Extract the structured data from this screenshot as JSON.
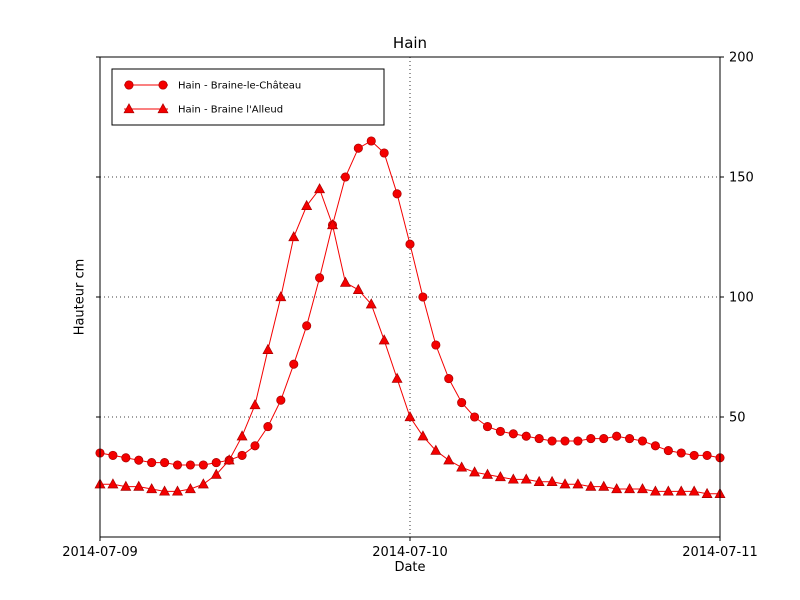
{
  "chart_data": {
    "type": "line",
    "title": "Hain",
    "xlabel": "Date",
    "ylabel": "Hauteur cm",
    "x_unit": "hours since 2014-07-09 00:00",
    "xlim": [
      0,
      48
    ],
    "ylim": [
      0,
      200
    ],
    "grid": true,
    "legend_position": "upper left",
    "line_color": "#f40000",
    "x_ticks": [
      {
        "value": 0,
        "label": "2014-07-09"
      },
      {
        "value": 24,
        "label": "2014-07-10"
      },
      {
        "value": 48,
        "label": "2014-07-11"
      }
    ],
    "y_ticks": [
      50,
      100,
      150,
      200
    ],
    "series": [
      {
        "name": "Hain - Braine-le-Château",
        "marker": "circle",
        "x": [
          0,
          1,
          2,
          3,
          4,
          5,
          6,
          7,
          8,
          9,
          10,
          11,
          12,
          13,
          14,
          15,
          16,
          17,
          18,
          19,
          20,
          21,
          22,
          23,
          24,
          25,
          26,
          27,
          28,
          29,
          30,
          31,
          32,
          33,
          34,
          35,
          36,
          37,
          38,
          39,
          40,
          41,
          42,
          43,
          44,
          45,
          46,
          47,
          48
        ],
        "y": [
          35,
          34,
          33,
          32,
          31,
          31,
          30,
          30,
          30,
          31,
          32,
          34,
          38,
          46,
          57,
          72,
          88,
          108,
          130,
          150,
          162,
          165,
          160,
          143,
          122,
          100,
          80,
          66,
          56,
          50,
          46,
          44,
          43,
          42,
          41,
          40,
          40,
          40,
          41,
          41,
          42,
          41,
          40,
          38,
          36,
          35,
          34,
          34,
          33
        ]
      },
      {
        "name": "Hain - Braine l'Alleud",
        "marker": "triangle",
        "x": [
          0,
          1,
          2,
          3,
          4,
          5,
          6,
          7,
          8,
          9,
          10,
          11,
          12,
          13,
          14,
          15,
          16,
          17,
          18,
          19,
          20,
          21,
          22,
          23,
          24,
          25,
          26,
          27,
          28,
          29,
          30,
          31,
          32,
          33,
          34,
          35,
          36,
          37,
          38,
          39,
          40,
          41,
          42,
          43,
          44,
          45,
          46,
          47,
          48
        ],
        "y": [
          22,
          22,
          21,
          21,
          20,
          19,
          19,
          20,
          22,
          26,
          32,
          42,
          55,
          78,
          100,
          125,
          138,
          145,
          130,
          106,
          103,
          97,
          82,
          66,
          50,
          42,
          36,
          32,
          29,
          27,
          26,
          25,
          24,
          24,
          23,
          23,
          22,
          22,
          21,
          21,
          20,
          20,
          20,
          19,
          19,
          19,
          19,
          18,
          18
        ]
      }
    ]
  }
}
